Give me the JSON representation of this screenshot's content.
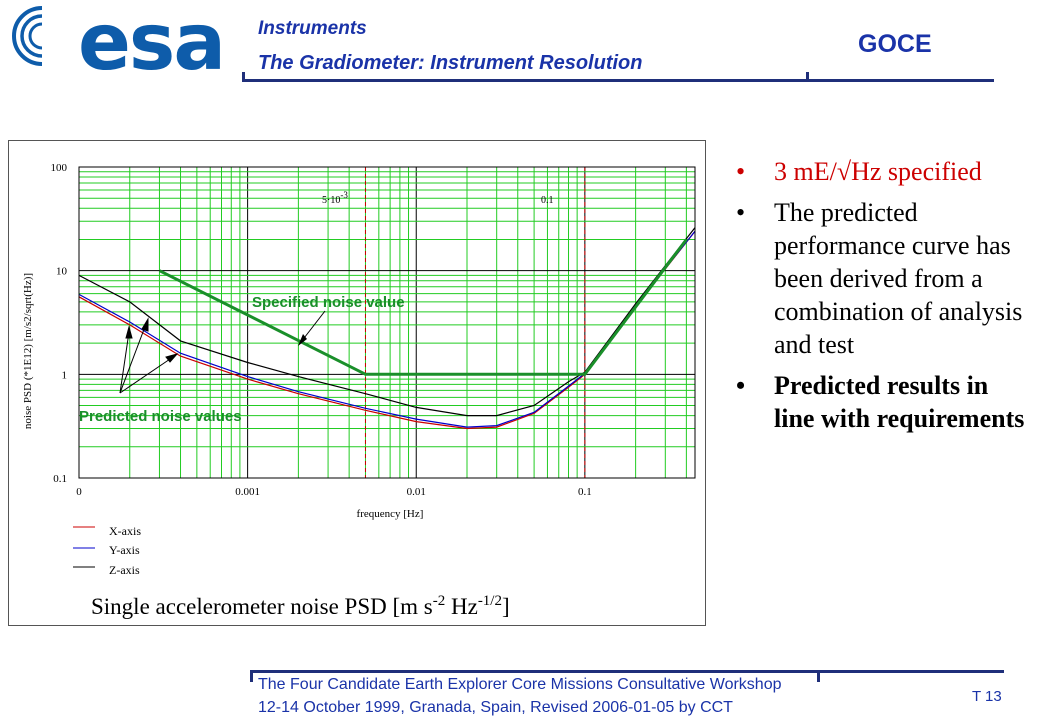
{
  "header": {
    "logo_text": "esa",
    "section": "Instruments",
    "title": "The Gradiometer: Instrument Resolution",
    "mission": "GOCE"
  },
  "chart_data": {
    "type": "line",
    "title": "Single accelerometer noise PSD [m s-2 Hz-1/2]",
    "xlabel": "frequency [Hz]",
    "ylabel": "noise PSD (*1E12) [m/s2/sqrt(Hz)]",
    "x_scale": "log",
    "y_scale": "log",
    "xlim": [
      0.0001,
      0.45
    ],
    "ylim": [
      0.1,
      100
    ],
    "x_tick_labels": [
      "0",
      "0.001",
      "0.01",
      "0.1"
    ],
    "y_tick_labels": [
      "100",
      "10",
      "1",
      "0.1"
    ],
    "grid": true,
    "legend_position": "bottom-left",
    "marker_labels": {
      "low": "5·10-3",
      "high": "0.1"
    },
    "series": [
      {
        "name": "X-axis",
        "color": "#cc0000",
        "x": [
          0.0001,
          0.0002,
          0.0004,
          0.001,
          0.002,
          0.005,
          0.01,
          0.02,
          0.03,
          0.05,
          0.08,
          0.1,
          0.2,
          0.45
        ],
        "y": [
          5.6,
          3.0,
          1.5,
          0.9,
          0.65,
          0.45,
          0.35,
          0.3,
          0.31,
          0.42,
          0.75,
          1.0,
          4.5,
          24
        ]
      },
      {
        "name": "Y-axis",
        "color": "#0000cc",
        "x": [
          0.0001,
          0.0002,
          0.0004,
          0.001,
          0.002,
          0.005,
          0.01,
          0.02,
          0.03,
          0.05,
          0.08,
          0.1,
          0.2,
          0.45
        ],
        "y": [
          5.9,
          3.2,
          1.6,
          0.95,
          0.68,
          0.47,
          0.37,
          0.31,
          0.32,
          0.43,
          0.77,
          1.02,
          4.6,
          24
        ]
      },
      {
        "name": "Z-axis",
        "color": "#000000",
        "x": [
          0.0001,
          0.0002,
          0.0004,
          0.001,
          0.002,
          0.005,
          0.01,
          0.02,
          0.03,
          0.05,
          0.08,
          0.1,
          0.2,
          0.45
        ],
        "y": [
          9.0,
          5.0,
          2.1,
          1.3,
          0.95,
          0.65,
          0.48,
          0.4,
          0.4,
          0.5,
          0.85,
          1.05,
          4.8,
          26
        ]
      },
      {
        "name": "",
        "color": "#1a8f2a",
        "x": [
          0.0003,
          0.005,
          0.1,
          0.4
        ],
        "y": [
          10,
          1,
          1,
          20
        ]
      }
    ],
    "annotations": [
      {
        "text": "Specified noise value",
        "points_to": [
          0.004,
          1.5
        ]
      },
      {
        "text": "Predicted noise values",
        "points_to": [
          0.0003,
          1.4
        ]
      }
    ]
  },
  "chart_ui": {
    "title_main": "Single accelerometer noise PSD [m s",
    "title_exp1": "-2",
    "title_mid": " Hz",
    "title_exp2": "-1/2",
    "title_end": "]",
    "marker_low_base": "5·10",
    "marker_low_exp": "-3",
    "annotation_specified": "Specified noise value",
    "annotation_predicted": "Predicted noise values"
  },
  "bullets": {
    "b1": "3 mE/√Hz specified",
    "b2": "The predicted performance curve has been derived from a combination of analysis and test",
    "b3": "Predicted results in line with requirements",
    "dot": "•"
  },
  "footer": {
    "line1": "The Four Candidate Earth Explorer Core Missions Consultative Workshop",
    "line2": "12-14 October 1999, Granada, Spain, Revised 2006-01-05 by CCT",
    "slide_number": "T 13"
  }
}
